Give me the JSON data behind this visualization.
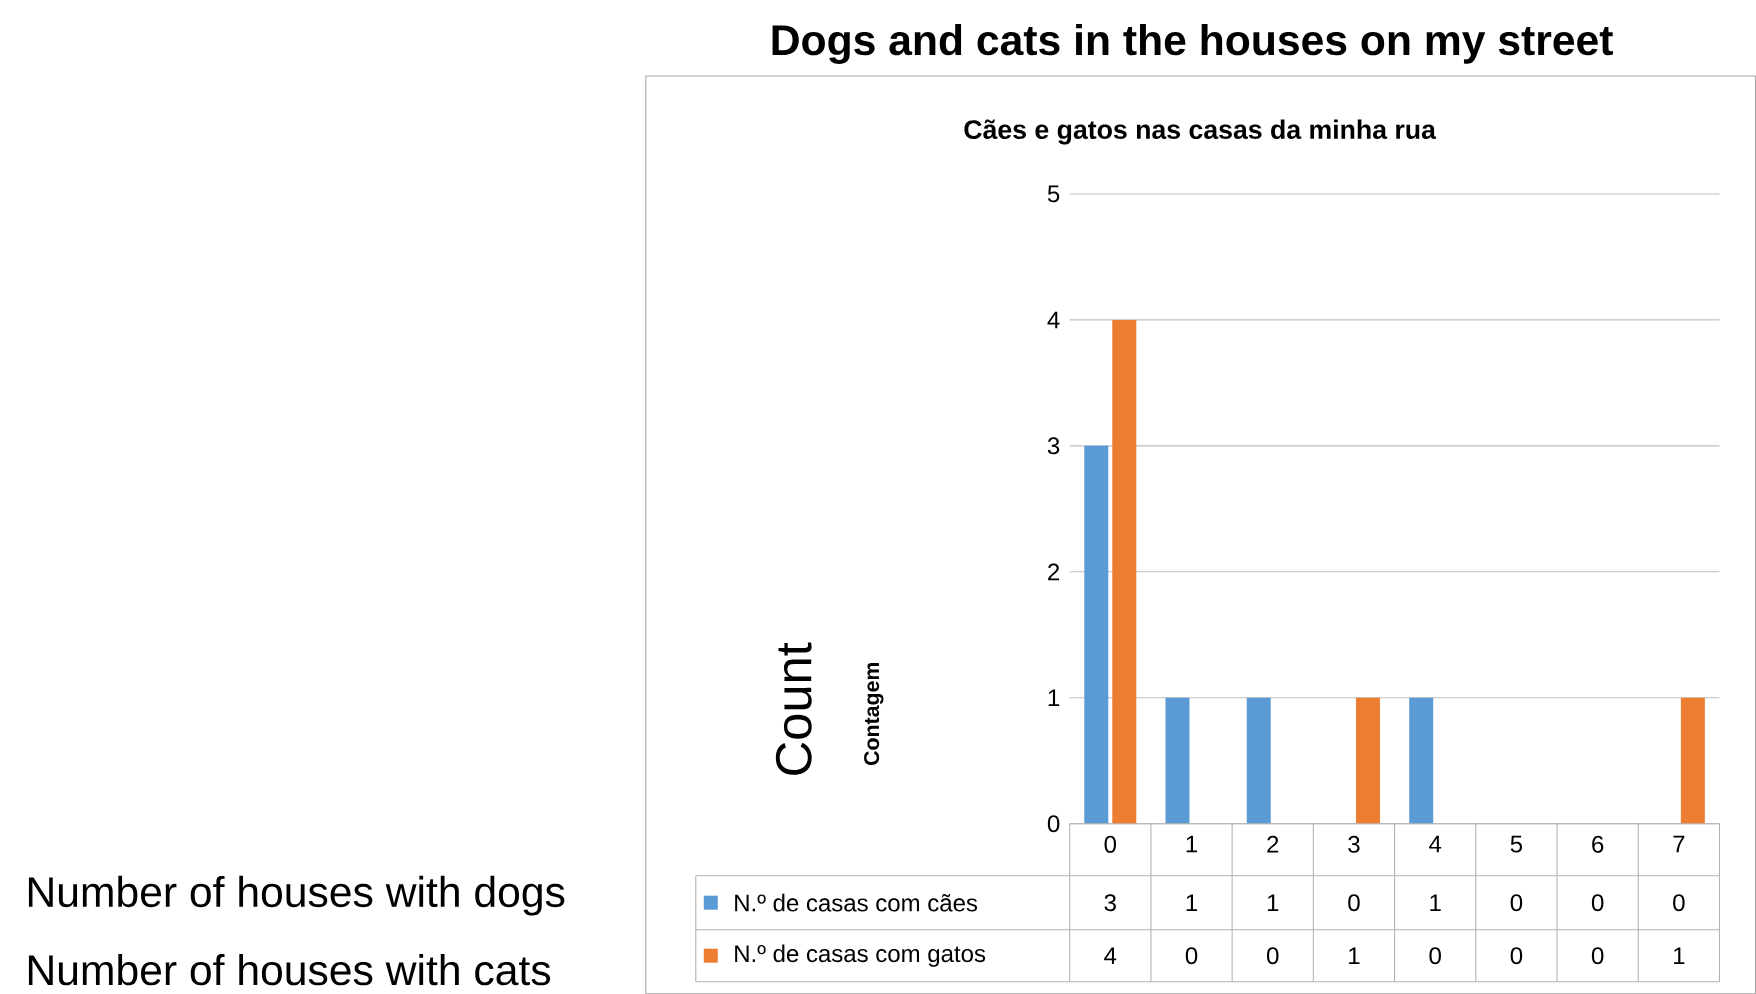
{
  "chart_data": {
    "type": "bar",
    "title": "Dogs and cats in the houses on my street",
    "subtitle": "Cães e gatos nas casas da minha rua",
    "annotations": [
      "Count",
      "Contagem",
      "Number of houses with dogs",
      "Number of houses with cats"
    ],
    "categories": [
      "0",
      "1",
      "2",
      "3",
      "4",
      "5",
      "6",
      "7"
    ],
    "series": [
      {
        "name": "N.º de casas com cães",
        "color": "#5b9bd5",
        "values": [
          3,
          1,
          1,
          0,
          1,
          0,
          0,
          0
        ]
      },
      {
        "name": "N.º de casas com gatos",
        "color": "#ed7d31",
        "values": [
          4,
          0,
          0,
          1,
          0,
          0,
          0,
          1
        ]
      }
    ],
    "ylim": [
      0,
      5
    ],
    "yticks": [
      0,
      1,
      2,
      3,
      4,
      5
    ],
    "grid": "y",
    "legend": "bottom",
    "data_labels": true
  }
}
